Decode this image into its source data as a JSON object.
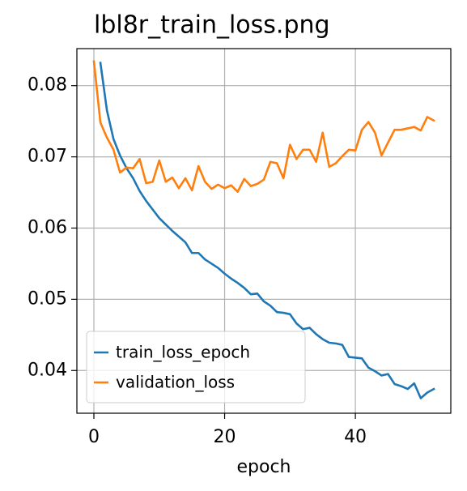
{
  "chart_data": {
    "type": "line",
    "title": "lbl8r_train_loss.png",
    "xlabel": "epoch",
    "xlim": [
      -2.6,
      54.6
    ],
    "xticks": [
      0,
      20,
      40
    ],
    "ylim": [
      0.034,
      0.0852
    ],
    "yticks": [
      0.04,
      0.05,
      0.06,
      0.07,
      0.08
    ],
    "grid": true,
    "legend": "lower left",
    "series": [
      {
        "name": "train_loss_epoch",
        "color": "#1f77b4",
        "x": [
          1,
          2,
          3,
          4,
          5,
          6,
          7,
          8,
          9,
          10,
          11,
          12,
          13,
          14,
          15,
          16,
          17,
          18,
          19,
          20,
          21,
          22,
          23,
          24,
          25,
          26,
          27,
          28,
          29,
          30,
          31,
          32,
          33,
          34,
          35,
          36,
          37,
          38,
          39,
          40,
          41,
          42,
          43,
          44,
          45,
          46,
          47,
          48,
          49,
          50,
          51,
          52
        ],
        "values": [
          0.0832,
          0.0765,
          0.0725,
          0.0702,
          0.0684,
          0.067,
          0.0652,
          0.0638,
          0.0626,
          0.0614,
          0.0605,
          0.0596,
          0.0588,
          0.058,
          0.0565,
          0.0565,
          0.0556,
          0.055,
          0.0544,
          0.0536,
          0.0529,
          0.0523,
          0.0516,
          0.0507,
          0.0508,
          0.0497,
          0.0491,
          0.0482,
          0.0481,
          0.0479,
          0.0466,
          0.0458,
          0.046,
          0.0451,
          0.0444,
          0.0439,
          0.0438,
          0.0436,
          0.0419,
          0.0418,
          0.0417,
          0.0404,
          0.0399,
          0.0393,
          0.0395,
          0.0381,
          0.0378,
          0.0374,
          0.0382,
          0.0361,
          0.0369,
          0.0374
        ]
      },
      {
        "name": "validation_loss",
        "color": "#ff7f0e",
        "x": [
          0,
          1,
          2,
          3,
          4,
          5,
          6,
          7,
          8,
          9,
          10,
          11,
          12,
          13,
          14,
          15,
          16,
          17,
          18,
          19,
          20,
          21,
          22,
          23,
          24,
          25,
          26,
          27,
          28,
          29,
          30,
          31,
          32,
          33,
          34,
          35,
          36,
          37,
          38,
          39,
          40,
          41,
          42,
          43,
          44,
          45,
          46,
          47,
          48,
          49,
          50,
          51,
          52
        ],
        "values": [
          0.0834,
          0.0748,
          0.0727,
          0.071,
          0.0678,
          0.0685,
          0.0684,
          0.0697,
          0.0663,
          0.0665,
          0.0695,
          0.0665,
          0.0671,
          0.0656,
          0.067,
          0.0653,
          0.0687,
          0.0665,
          0.0655,
          0.0661,
          0.0656,
          0.066,
          0.0651,
          0.0669,
          0.0659,
          0.0662,
          0.0668,
          0.0693,
          0.0691,
          0.067,
          0.0717,
          0.0697,
          0.071,
          0.071,
          0.0693,
          0.0734,
          0.0686,
          0.0691,
          0.0701,
          0.071,
          0.0709,
          0.0738,
          0.0749,
          0.0734,
          0.0702,
          0.072,
          0.0738,
          0.0738,
          0.074,
          0.0742,
          0.0737,
          0.0756,
          0.0751
        ]
      }
    ]
  }
}
